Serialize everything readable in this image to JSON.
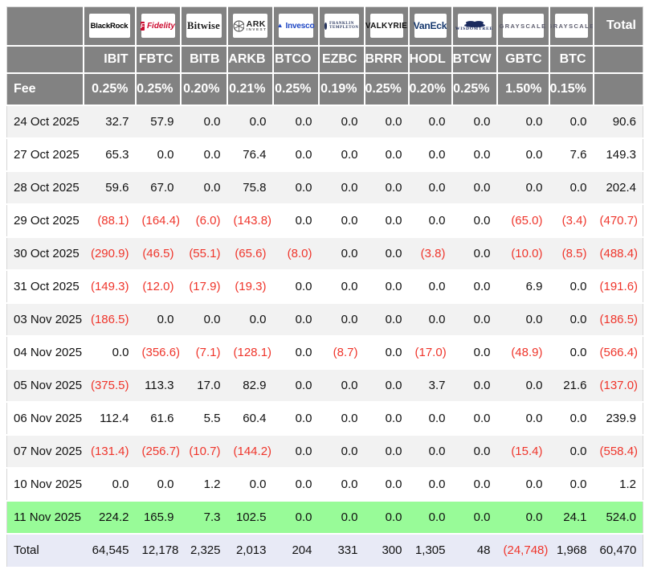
{
  "table": {
    "fee_label": "Fee",
    "total_header": "Total",
    "total_label": "Total",
    "colors": {
      "header_bg": "#828282",
      "row_alt_bg": "#f2f2f2",
      "highlight_green": "#98fb98",
      "total_row_bg": "#e8eaf6",
      "negative_red": "#ef352b"
    },
    "columns": [
      {
        "issuer": "BlackRock",
        "logo": "blackrock",
        "ticker": "IBIT",
        "fee": "0.25%"
      },
      {
        "issuer": "Fidelity",
        "logo": "fidelity",
        "logo_letter": "F",
        "ticker": "FBTC",
        "fee": "0.25%"
      },
      {
        "issuer": "Bitwise",
        "logo": "bitwise",
        "ticker": "BITB",
        "fee": "0.20%"
      },
      {
        "issuer": "ARK Invest",
        "logo": "ark",
        "logo_lines": [
          "ARK",
          "INVEST"
        ],
        "ticker": "ARKB",
        "fee": "0.21%"
      },
      {
        "issuer": "Invesco",
        "logo": "invesco",
        "ticker": "BTCO",
        "fee": "0.25%"
      },
      {
        "issuer": "Franklin Templeton",
        "logo": "franklin",
        "logo_lines": [
          "FRANKLIN",
          "TEMPLETON"
        ],
        "ticker": "EZBC",
        "fee": "0.19%"
      },
      {
        "issuer": "VALKYRIE",
        "logo": "valkyrie",
        "ticker": "BRRR",
        "fee": "0.25%"
      },
      {
        "issuer": "VanEck",
        "logo": "vaneck",
        "ticker": "HODL",
        "fee": "0.20%"
      },
      {
        "issuer": "WisdomTree",
        "logo": "wisdomtree",
        "logo_text": "WISDOMTREE",
        "ticker": "BTCW",
        "fee": "0.25%"
      },
      {
        "issuer": "GRAYSCALE",
        "logo": "grayscale",
        "ticker": "GBTC",
        "fee": "1.50%"
      },
      {
        "issuer": "GRAYSCALE",
        "logo": "grayscale",
        "ticker": "BTC",
        "fee": "0.15%"
      }
    ],
    "rows": [
      {
        "date": "24 Oct 2025",
        "values": [
          "32.7",
          "57.9",
          "0.0",
          "0.0",
          "0.0",
          "0.0",
          "0.0",
          "0.0",
          "0.0",
          "0.0",
          "0.0"
        ],
        "total": "90.6",
        "highlight": false
      },
      {
        "date": "27 Oct 2025",
        "values": [
          "65.3",
          "0.0",
          "0.0",
          "76.4",
          "0.0",
          "0.0",
          "0.0",
          "0.0",
          "0.0",
          "0.0",
          "7.6"
        ],
        "total": "149.3",
        "highlight": false
      },
      {
        "date": "28 Oct 2025",
        "values": [
          "59.6",
          "67.0",
          "0.0",
          "75.8",
          "0.0",
          "0.0",
          "0.0",
          "0.0",
          "0.0",
          "0.0",
          "0.0"
        ],
        "total": "202.4",
        "highlight": false
      },
      {
        "date": "29 Oct 2025",
        "values": [
          "(88.1)",
          "(164.4)",
          "(6.0)",
          "(143.8)",
          "0.0",
          "0.0",
          "0.0",
          "0.0",
          "0.0",
          "(65.0)",
          "(3.4)"
        ],
        "total": "(470.7)",
        "highlight": false
      },
      {
        "date": "30 Oct 2025",
        "values": [
          "(290.9)",
          "(46.5)",
          "(55.1)",
          "(65.6)",
          "(8.0)",
          "0.0",
          "0.0",
          "(3.8)",
          "0.0",
          "(10.0)",
          "(8.5)"
        ],
        "total": "(488.4)",
        "highlight": false
      },
      {
        "date": "31 Oct 2025",
        "values": [
          "(149.3)",
          "(12.0)",
          "(17.9)",
          "(19.3)",
          "0.0",
          "0.0",
          "0.0",
          "0.0",
          "0.0",
          "6.9",
          "0.0"
        ],
        "total": "(191.6)",
        "highlight": false
      },
      {
        "date": "03 Nov 2025",
        "values": [
          "(186.5)",
          "0.0",
          "0.0",
          "0.0",
          "0.0",
          "0.0",
          "0.0",
          "0.0",
          "0.0",
          "0.0",
          "0.0"
        ],
        "total": "(186.5)",
        "highlight": false
      },
      {
        "date": "04 Nov 2025",
        "values": [
          "0.0",
          "(356.6)",
          "(7.1)",
          "(128.1)",
          "0.0",
          "(8.7)",
          "0.0",
          "(17.0)",
          "0.0",
          "(48.9)",
          "0.0"
        ],
        "total": "(566.4)",
        "highlight": false
      },
      {
        "date": "05 Nov 2025",
        "values": [
          "(375.5)",
          "113.3",
          "17.0",
          "82.9",
          "0.0",
          "0.0",
          "0.0",
          "3.7",
          "0.0",
          "0.0",
          "21.6"
        ],
        "total": "(137.0)",
        "highlight": false
      },
      {
        "date": "06 Nov 2025",
        "values": [
          "112.4",
          "61.6",
          "5.5",
          "60.4",
          "0.0",
          "0.0",
          "0.0",
          "0.0",
          "0.0",
          "0.0",
          "0.0"
        ],
        "total": "239.9",
        "highlight": false
      },
      {
        "date": "07 Nov 2025",
        "values": [
          "(131.4)",
          "(256.7)",
          "(10.7)",
          "(144.2)",
          "0.0",
          "0.0",
          "0.0",
          "0.0",
          "0.0",
          "(15.4)",
          "0.0"
        ],
        "total": "(558.4)",
        "highlight": false
      },
      {
        "date": "10 Nov 2025",
        "values": [
          "0.0",
          "0.0",
          "1.2",
          "0.0",
          "0.0",
          "0.0",
          "0.0",
          "0.0",
          "0.0",
          "0.0",
          "0.0"
        ],
        "total": "1.2",
        "highlight": false
      },
      {
        "date": "11 Nov 2025",
        "values": [
          "224.2",
          "165.9",
          "7.3",
          "102.5",
          "0.0",
          "0.0",
          "0.0",
          "0.0",
          "0.0",
          "0.0",
          "24.1"
        ],
        "total": "524.0",
        "highlight": true
      }
    ],
    "totals": {
      "values": [
        "64,545",
        "12,178",
        "2,325",
        "2,013",
        "204",
        "331",
        "300",
        "1,305",
        "48",
        "(24,748)",
        "1,968"
      ],
      "grand_total": "60,470"
    }
  }
}
